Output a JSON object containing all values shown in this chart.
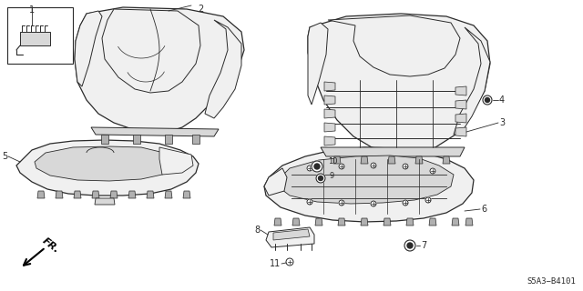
{
  "diagram_code": "S5A3−B4101",
  "background_color": "#ffffff",
  "line_color": "#2a2a2a",
  "fill_light": "#f0f0f0",
  "fill_mid": "#d8d8d8",
  "fill_dark": "#b0b0b0",
  "fig_width": 6.4,
  "fig_height": 3.2,
  "dpi": 100
}
